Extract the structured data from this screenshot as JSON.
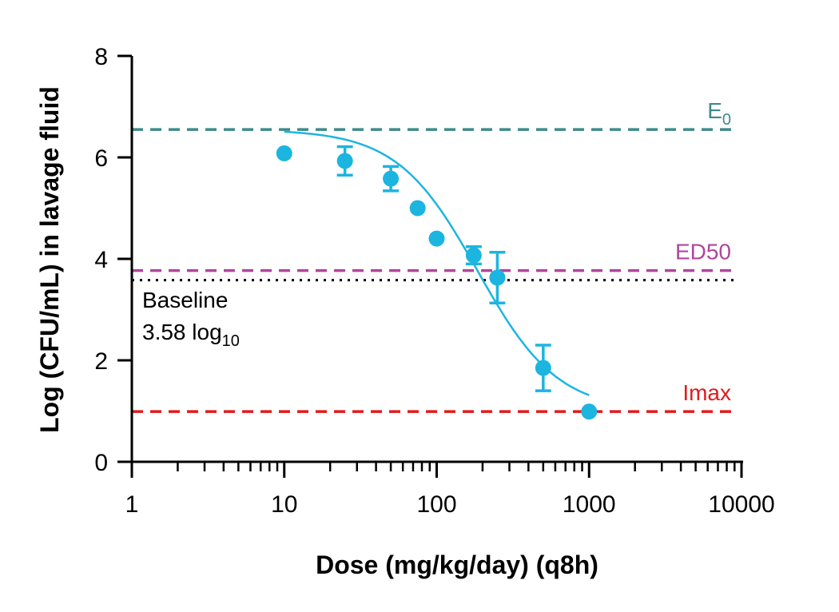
{
  "chart_data": {
    "type": "scatter",
    "title": "",
    "xlabel": "Dose (mg/kg/day) (q8h)",
    "ylabel": "Log (CFU/mL) in lavage fluid",
    "xscale": "log",
    "xlim": [
      1,
      10000
    ],
    "ylim": [
      0,
      8
    ],
    "x_ticks": [
      1,
      10,
      100,
      1000,
      10000
    ],
    "x_tick_labels": [
      "1",
      "10",
      "100",
      "1000",
      "10000"
    ],
    "y_ticks": [
      0,
      2,
      4,
      6,
      8
    ],
    "y_tick_labels": [
      "0",
      "2",
      "4",
      "6",
      "8"
    ],
    "grid": false,
    "series": [
      {
        "color": "#1cb5e0",
        "points": [
          {
            "x": 10,
            "y": 6.08
          },
          {
            "x": 25,
            "y": 5.93,
            "err": 0.28
          },
          {
            "x": 50,
            "y": 5.58,
            "err": 0.24
          },
          {
            "x": 75,
            "y": 5.0
          },
          {
            "x": 100,
            "y": 4.4
          },
          {
            "x": 175,
            "y": 4.07,
            "err": 0.17
          },
          {
            "x": 250,
            "y": 3.63,
            "err": 0.5
          },
          {
            "x": 500,
            "y": 1.85,
            "err": 0.45
          },
          {
            "x": 1000,
            "y": 0.99
          }
        ]
      }
    ],
    "fit_curve": {
      "color": "#1cb5e0",
      "model": "Emax",
      "E0": 6.55,
      "Imax": 0.99,
      "ED50": 185,
      "hill": 1.65,
      "x_range": [
        10,
        1000
      ]
    },
    "reference_lines": [
      {
        "y": 6.55,
        "label": "E",
        "label_sub": "0",
        "color": "#3f8a8a",
        "style": "dashed"
      },
      {
        "y": 3.77,
        "label": "ED50",
        "label_sub": "",
        "color": "#b0469d",
        "style": "dashed"
      },
      {
        "y": 3.58,
        "label": "",
        "label_sub": "",
        "color": "#000000",
        "style": "dotted"
      },
      {
        "y": 0.99,
        "label": "Imax",
        "label_sub": "",
        "color": "#e31a1c",
        "style": "dashed"
      }
    ],
    "annotations": {
      "baseline_line1": "Baseline",
      "baseline_line2": "3.58 log",
      "baseline_sub": "10"
    }
  }
}
